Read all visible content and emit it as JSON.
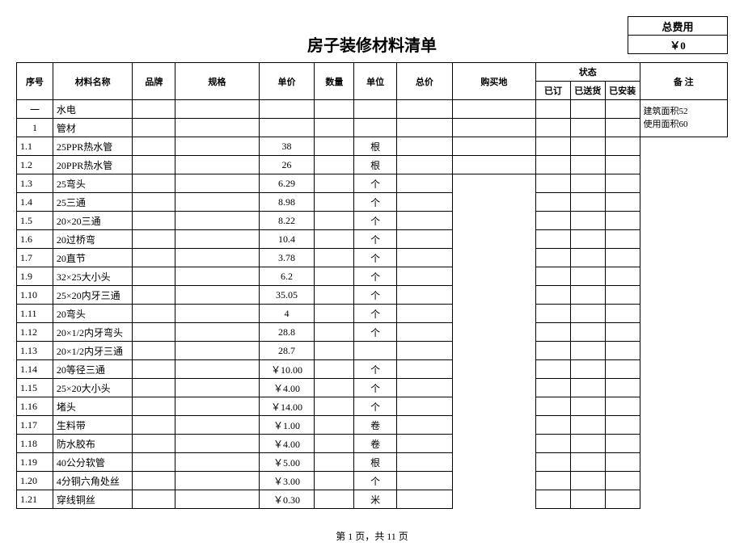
{
  "title": "房子装修材料清单",
  "cost_label": "总费用",
  "cost_value": "￥0",
  "header": {
    "seq": "序号",
    "name": "材料名称",
    "brand": "品牌",
    "spec": "规格",
    "price": "单价",
    "qty": "数量",
    "unit": "单位",
    "total": "总价",
    "buy": "购买地",
    "status": "状态",
    "status_sub": [
      "已订",
      "已送货",
      "已安装"
    ],
    "remark": "备 注"
  },
  "section": {
    "seq": "一",
    "name": "水电"
  },
  "subsection": {
    "seq": "1",
    "name": "管材"
  },
  "remark_lines": [
    "建筑面积52",
    "使用面积60"
  ],
  "rows": [
    {
      "seq": "1.1",
      "name": "25PPR热水管",
      "price": "38",
      "unit": "根"
    },
    {
      "seq": "1.2",
      "name": "20PPR热水管",
      "price": "26",
      "unit": "根"
    },
    {
      "seq": "1.3",
      "name": "25弯头",
      "price": "6.29",
      "unit": "个"
    },
    {
      "seq": "1.4",
      "name": "25三通",
      "price": "8.98",
      "unit": "个"
    },
    {
      "seq": "1.5",
      "name": "20×20三通",
      "price": "8.22",
      "unit": "个"
    },
    {
      "seq": "1.6",
      "name": "20过桥弯",
      "price": "10.4",
      "unit": "个"
    },
    {
      "seq": "1.7",
      "name": "20直节",
      "price": "3.78",
      "unit": "个"
    },
    {
      "seq": "1.9",
      "name": "32×25大小头",
      "price": "6.2",
      "unit": "个"
    },
    {
      "seq": "1.10",
      "name": "25×20内牙三通",
      "price": "35.05",
      "unit": "个"
    },
    {
      "seq": "1.11",
      "name": "20弯头",
      "price": "4",
      "unit": "个"
    },
    {
      "seq": "1.12",
      "name": "20×1/2内牙弯头",
      "price": "28.8",
      "unit": "个"
    },
    {
      "seq": "1.13",
      "name": "20×1/2内牙三通",
      "price": "28.7",
      "unit": ""
    },
    {
      "seq": "1.14",
      "name": "20等径三通",
      "price": "￥10.00",
      "unit": "个"
    },
    {
      "seq": "1.15",
      "name": "25×20大小头",
      "price": "￥4.00",
      "unit": "个"
    },
    {
      "seq": "1.16",
      "name": "堵头",
      "price": "￥14.00",
      "unit": "个"
    },
    {
      "seq": "1.17",
      "name": "生料带",
      "price": "￥1.00",
      "unit": "卷"
    },
    {
      "seq": "1.18",
      "name": "防水胶布",
      "price": "￥4.00",
      "unit": "卷"
    },
    {
      "seq": "1.19",
      "name": "40公分软管",
      "price": "￥5.00",
      "unit": "根"
    },
    {
      "seq": "1.20",
      "name": "4分铜六角处丝",
      "price": "￥3.00",
      "unit": "个"
    },
    {
      "seq": "1.21",
      "name": "穿线铜丝",
      "price": "￥0.30",
      "unit": "米"
    }
  ],
  "footer": "第 1 页，共 11 页"
}
